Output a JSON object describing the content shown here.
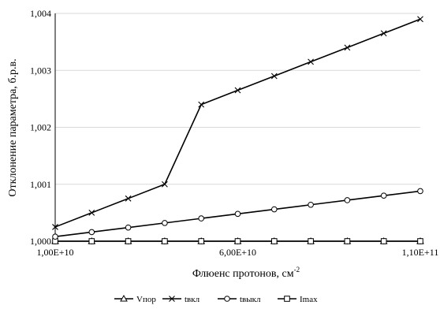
{
  "chart_data": {
    "type": "line",
    "title": "",
    "xlabel": "Флюенс протонов, см",
    "xlabel_sup": "-2",
    "ylabel": "Отклонение параметра, б.р.в.",
    "xlim": [
      10000000000.0,
      110000000000.0
    ],
    "ylim": [
      1.0,
      1.004
    ],
    "x_ticks": [
      10000000000.0,
      60000000000.0,
      110000000000.0
    ],
    "x_tick_labels": [
      "1,00E+10",
      "6,00E+10",
      "1,10E+11"
    ],
    "y_ticks": [
      1.0,
      1.001,
      1.002,
      1.003,
      1.004
    ],
    "y_tick_labels": [
      "1,000",
      "1,001",
      "1,002",
      "1,003",
      "1,004"
    ],
    "grid": "horizontal",
    "legend_position": "bottom",
    "x": [
      10000000000.0,
      20000000000.0,
      30000000000.0,
      40000000000.0,
      50000000000.0,
      60000000000.0,
      70000000000.0,
      80000000000.0,
      90000000000.0,
      100000000000.0,
      110000000000.0
    ],
    "series": [
      {
        "name": "Vпор",
        "marker": "triangle",
        "values": [
          1.0,
          1.0,
          1.0,
          1.0,
          1.0,
          1.0,
          1.0,
          1.0,
          1.0,
          1.0,
          1.0
        ]
      },
      {
        "name": "tвкл",
        "marker": "x",
        "values": [
          1.00025,
          1.0005,
          1.00075,
          1.001,
          1.0024,
          1.00265,
          1.0029,
          1.00315,
          1.0034,
          1.00365,
          1.0039
        ]
      },
      {
        "name": "tвыкл",
        "marker": "circle",
        "values": [
          1.00008,
          1.00016,
          1.00024,
          1.00032,
          1.0004,
          1.00048,
          1.00056,
          1.00064,
          1.00072,
          1.0008,
          1.00088
        ]
      },
      {
        "name": "Imax",
        "marker": "square",
        "values": [
          1.0,
          1.0,
          1.0,
          1.0,
          1.0,
          1.0,
          1.0,
          1.0,
          1.0,
          1.0,
          1.0
        ]
      }
    ]
  }
}
